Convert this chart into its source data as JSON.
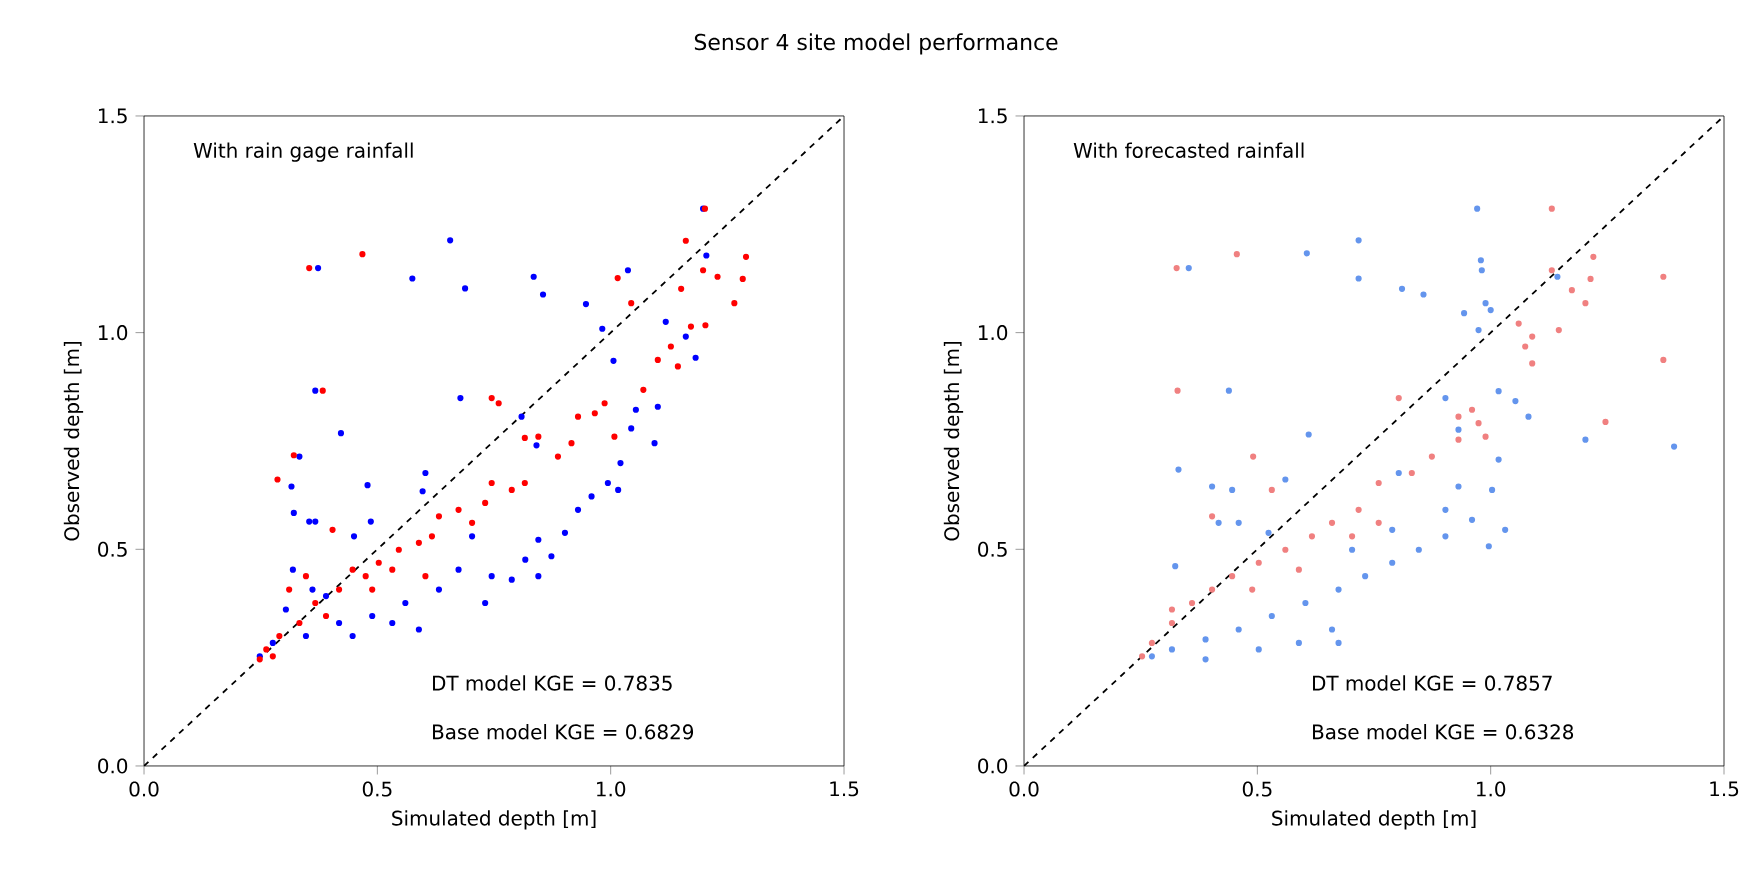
{
  "chart_data": [
    {
      "type": "scatter",
      "title": "Sensor 4 site model performance",
      "xlabel": "Simulated depth [m]",
      "ylabel": "Observed depth [m]",
      "annotations": [
        "With rain gage rainfall",
        "DT model KGE = 0.7835",
        "Base model KGE = 0.6829"
      ],
      "xlim": [
        0,
        1.5
      ],
      "ylim": [
        0,
        1.5
      ],
      "xticks": [
        {
          "value": 0,
          "label": "0.0"
        },
        {
          "value": 0.5,
          "label": "0.5"
        },
        {
          "value": 1,
          "label": "1.0"
        },
        {
          "value": 1.5,
          "label": "1.5"
        }
      ],
      "yticks": [
        {
          "value": 0,
          "label": "0.0"
        },
        {
          "value": 0.5,
          "label": "0.5"
        },
        {
          "value": 1,
          "label": "1.0"
        },
        {
          "value": 1.5,
          "label": "1.5"
        }
      ],
      "marker": "circle",
      "series": [
        {
          "color": "#0000ff",
          "x": [
            1.198,
            0.656,
            0.373,
            0.575,
            0.688,
            0.835,
            0.855,
            0.947,
            1.037,
            1.205,
            0.982,
            1.118,
            1.161,
            1.006,
            1.182,
            0.367,
            0.678,
            0.809,
            1.054,
            1.044,
            1.101,
            1.094,
            0.422,
            0.333,
            0.841,
            1.021,
            0.316,
            0.603,
            0.479,
            0.994,
            1.016,
            0.321,
            0.354,
            0.367,
            0.45,
            0.486,
            0.597,
            0.93,
            0.902,
            0.845,
            0.817,
            0.788,
            0.873,
            0.703,
            0.674,
            0.745,
            0.731,
            0.632,
            0.56,
            0.489,
            0.418,
            0.347,
            0.276,
            0.304,
            0.319,
            0.361,
            0.39,
            0.532,
            0.589,
            0.845,
            0.959,
            0.248,
            0.447
          ],
          "values": [
            1.286,
            1.213,
            1.149,
            1.125,
            1.102,
            1.129,
            1.088,
            1.066,
            1.144,
            1.178,
            1.009,
            1.025,
            0.991,
            0.935,
            0.942,
            0.866,
            0.849,
            0.806,
            0.822,
            0.779,
            0.829,
            0.745,
            0.768,
            0.714,
            0.74,
            0.699,
            0.645,
            0.676,
            0.648,
            0.653,
            0.637,
            0.584,
            0.564,
            0.564,
            0.53,
            0.564,
            0.634,
            0.591,
            0.538,
            0.522,
            0.476,
            0.43,
            0.484,
            0.53,
            0.453,
            0.438,
            0.376,
            0.407,
            0.376,
            0.346,
            0.33,
            0.3,
            0.284,
            0.361,
            0.453,
            0.407,
            0.392,
            0.33,
            0.315,
            0.438,
            0.622,
            0.253,
            0.3
          ]
        },
        {
          "color": "#ff0000",
          "x": [
            1.202,
            0.468,
            0.354,
            1.161,
            1.198,
            1.229,
            1.29,
            1.283,
            1.265,
            1.015,
            1.044,
            1.151,
            1.129,
            1.144,
            1.101,
            1.172,
            1.203,
            0.383,
            0.745,
            0.76,
            0.93,
            0.987,
            0.966,
            1.008,
            1.07,
            0.321,
            0.286,
            0.816,
            0.845,
            0.887,
            0.916,
            0.404,
            0.745,
            0.788,
            0.816,
            0.731,
            0.674,
            0.703,
            0.632,
            0.589,
            0.617,
            0.546,
            0.503,
            0.475,
            0.418,
            0.367,
            0.333,
            0.29,
            0.262,
            0.248,
            0.276,
            0.447,
            0.532,
            0.603,
            0.489,
            0.39,
            0.311,
            0.347
          ],
          "values": [
            1.286,
            1.181,
            1.149,
            1.212,
            1.144,
            1.129,
            1.175,
            1.124,
            1.068,
            1.126,
            1.068,
            1.101,
            0.968,
            0.922,
            0.937,
            1.014,
            1.017,
            0.866,
            0.849,
            0.837,
            0.806,
            0.837,
            0.814,
            0.76,
            0.868,
            0.717,
            0.661,
            0.757,
            0.76,
            0.714,
            0.745,
            0.545,
            0.653,
            0.637,
            0.653,
            0.607,
            0.591,
            0.561,
            0.576,
            0.515,
            0.53,
            0.499,
            0.469,
            0.438,
            0.407,
            0.376,
            0.33,
            0.3,
            0.269,
            0.246,
            0.253,
            0.453,
            0.453,
            0.438,
            0.407,
            0.346,
            0.407,
            0.438
          ]
        },
        {
          "type": "line",
          "color": "#000000",
          "marker": "none",
          "line_style": "dashed",
          "x": [
            0,
            1.5
          ],
          "values": [
            0,
            1.5
          ]
        }
      ]
    },
    {
      "type": "scatter",
      "xlabel": "Simulated depth [m]",
      "ylabel": "Observed depth [m]",
      "annotations": [
        "With forecasted rainfall",
        "DT model KGE = 0.7857",
        "Base model KGE = 0.6328"
      ],
      "xlim": [
        0,
        1.5
      ],
      "ylim": [
        0,
        1.5
      ],
      "xticks": [
        {
          "value": 0,
          "label": "0.0"
        },
        {
          "value": 0.5,
          "label": "0.5"
        },
        {
          "value": 1,
          "label": "1.0"
        },
        {
          "value": 1.5,
          "label": "1.5"
        }
      ],
      "yticks": [
        {
          "value": 0,
          "label": "0.0"
        },
        {
          "value": 0.5,
          "label": "0.5"
        },
        {
          "value": 1,
          "label": "1.0"
        },
        {
          "value": 1.5,
          "label": "1.5"
        }
      ],
      "marker": "circle",
      "series": [
        {
          "color": "#6495ed",
          "x": [
            0.971,
            0.717,
            0.606,
            0.353,
            0.717,
            0.81,
            0.856,
            0.979,
            0.981,
            0.989,
            1.0,
            1.143,
            0.943,
            0.974,
            0.439,
            0.903,
            1.017,
            1.053,
            1.081,
            0.931,
            0.61,
            1.203,
            1.393,
            1.017,
            0.331,
            0.56,
            0.403,
            0.446,
            0.803,
            0.931,
            1.003,
            0.417,
            0.46,
            0.524,
            1.031,
            0.996,
            0.96,
            0.903,
            0.846,
            0.789,
            0.731,
            0.674,
            0.603,
            0.531,
            0.46,
            0.389,
            0.317,
            0.324,
            0.66,
            0.674,
            0.589,
            0.503,
            0.389,
            0.903,
            0.789,
            0.703,
            0.274
          ],
          "values": [
            1.286,
            1.213,
            1.183,
            1.149,
            1.125,
            1.101,
            1.088,
            1.167,
            1.144,
            1.068,
            1.052,
            1.129,
            1.045,
            1.006,
            0.866,
            0.849,
            0.865,
            0.842,
            0.806,
            0.776,
            0.765,
            0.753,
            0.737,
            0.707,
            0.684,
            0.661,
            0.645,
            0.637,
            0.676,
            0.645,
            0.637,
            0.561,
            0.561,
            0.538,
            0.545,
            0.507,
            0.568,
            0.53,
            0.499,
            0.469,
            0.438,
            0.407,
            0.376,
            0.346,
            0.315,
            0.292,
            0.269,
            0.461,
            0.315,
            0.284,
            0.284,
            0.269,
            0.246,
            0.591,
            0.545,
            0.499,
            0.253
          ]
        },
        {
          "color": "#f08080",
          "x": [
            1.131,
            0.456,
            0.327,
            1.131,
            1.174,
            1.22,
            1.214,
            1.203,
            1.37,
            1.37,
            1.246,
            1.06,
            1.089,
            1.146,
            1.074,
            1.089,
            0.329,
            0.803,
            0.931,
            0.96,
            0.974,
            0.931,
            0.989,
            0.491,
            0.531,
            0.831,
            0.874,
            0.76,
            0.403,
            0.717,
            0.66,
            0.617,
            0.56,
            0.503,
            0.446,
            0.403,
            0.36,
            0.317,
            0.274,
            0.253,
            0.317,
            0.703,
            0.76,
            0.489,
            0.589
          ],
          "values": [
            1.286,
            1.181,
            1.149,
            1.144,
            1.098,
            1.175,
            1.124,
            1.068,
            1.129,
            0.937,
            0.794,
            1.021,
            0.991,
            1.006,
            0.968,
            0.929,
            0.866,
            0.849,
            0.806,
            0.822,
            0.791,
            0.753,
            0.76,
            0.714,
            0.637,
            0.676,
            0.714,
            0.653,
            0.576,
            0.591,
            0.561,
            0.53,
            0.499,
            0.469,
            0.438,
            0.407,
            0.376,
            0.33,
            0.284,
            0.253,
            0.361,
            0.53,
            0.561,
            0.407,
            0.453
          ]
        },
        {
          "type": "line",
          "color": "#000000",
          "marker": "none",
          "line_style": "dashed",
          "x": [
            0,
            1.5
          ],
          "values": [
            0,
            1.5
          ]
        }
      ]
    }
  ]
}
